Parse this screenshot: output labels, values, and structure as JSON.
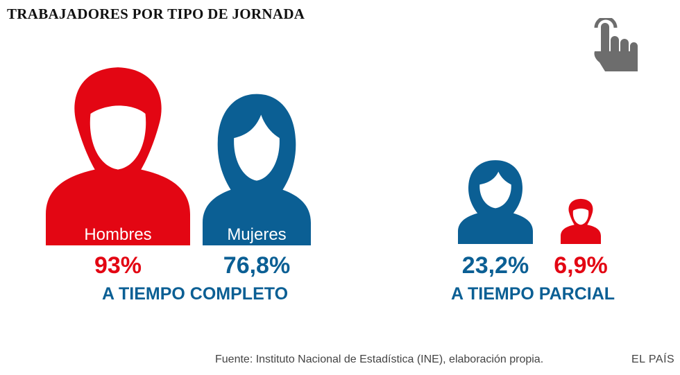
{
  "title": "TRABAJADORES POR TIPO DE JORNADA",
  "colors": {
    "red": "#e30613",
    "blue": "#0b5f94",
    "icon_gray": "#6d6d6d"
  },
  "icons": {
    "tap": "tap-hand-icon",
    "male": "male-person-icon",
    "female": "female-person-icon"
  },
  "chart_data": {
    "type": "pictogram",
    "groups": [
      {
        "label": "A TIEMPO COMPLETO",
        "items": [
          {
            "name": "Hombres",
            "value": 93,
            "display": "93%",
            "gender": "male"
          },
          {
            "name": "Mujeres",
            "value": 76.8,
            "display": "76,8%",
            "gender": "female"
          }
        ]
      },
      {
        "label": "A TIEMPO PARCIAL",
        "items": [
          {
            "name": "",
            "value": 23.2,
            "display": "23,2%",
            "gender": "female"
          },
          {
            "name": "",
            "value": 6.9,
            "display": "6,9%",
            "gender": "male"
          }
        ]
      }
    ]
  },
  "footer": {
    "source": "Fuente: Instituto Nacional de Estadística (INE), elaboración propia.",
    "brand": "EL PAÍS"
  }
}
